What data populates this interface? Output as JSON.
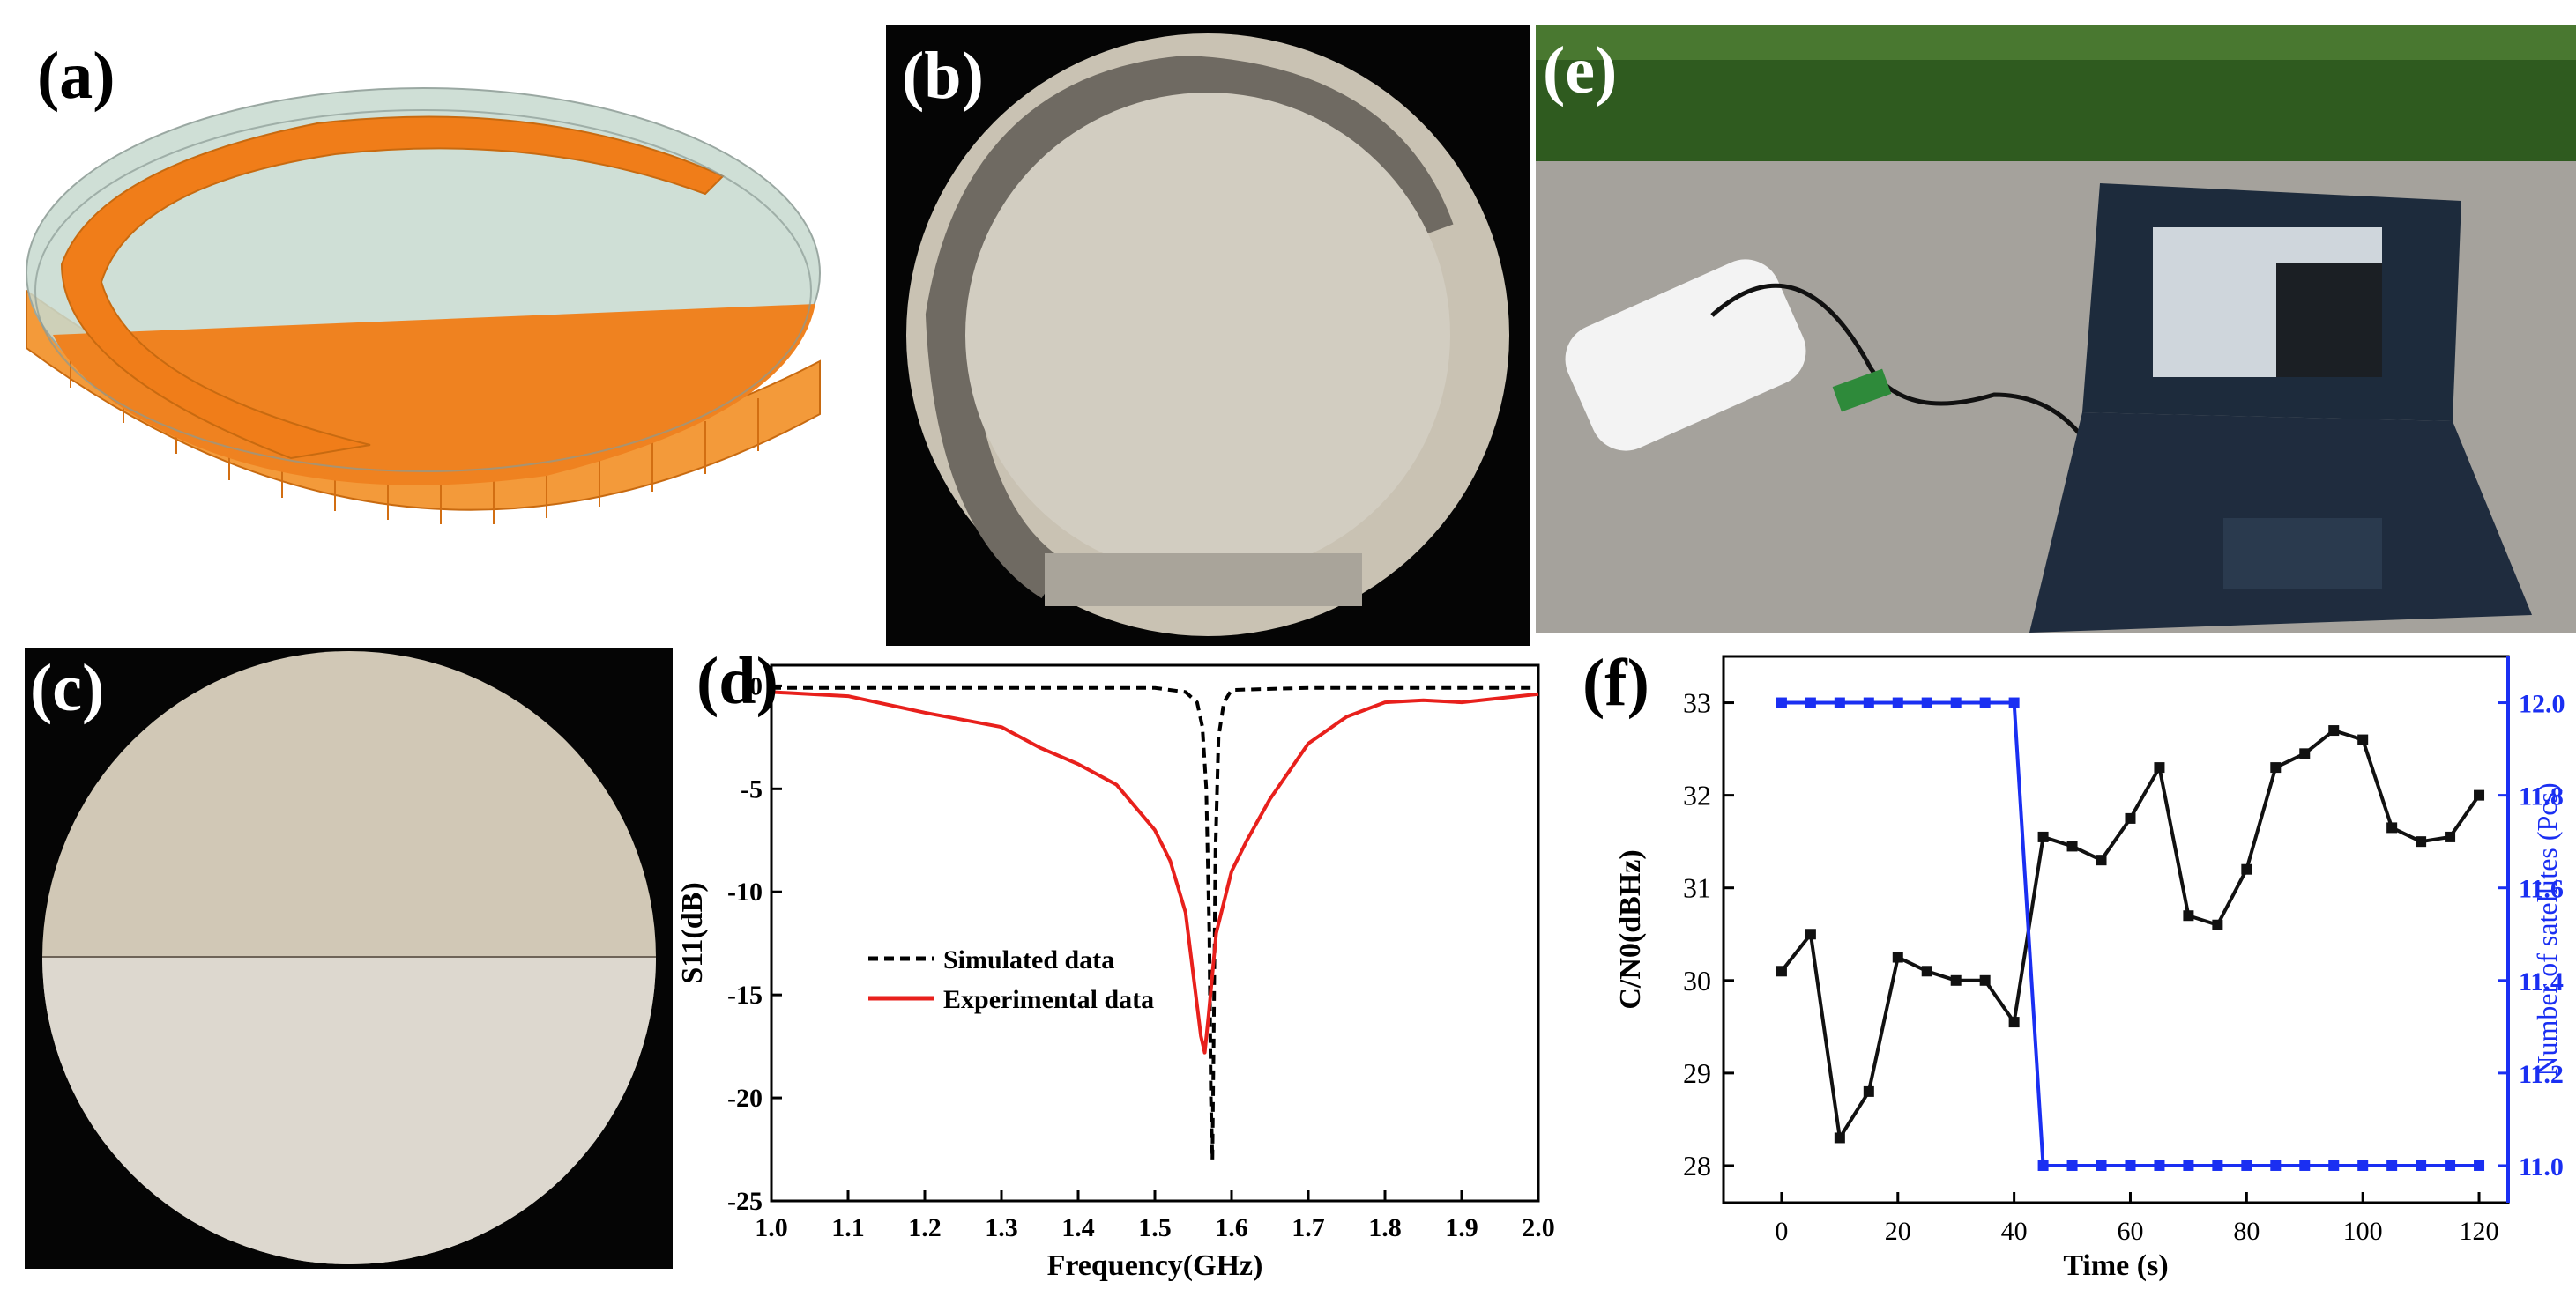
{
  "figure": {
    "panel_labels": {
      "a": "(a)",
      "b": "(b)",
      "c": "(c)",
      "d": "(d)",
      "e": "(e)",
      "f": "(f)"
    }
  },
  "colors": {
    "copper": "#f07d19",
    "substrate": "#c8d8d0",
    "simulated": "#000000",
    "experimental": "#e8201c",
    "cn0_series": "#111111",
    "satellites_series": "#1a2ff2",
    "right_axis": "#1a2ff2"
  },
  "chart_data": [
    {
      "panel": "d",
      "type": "line",
      "title": "",
      "xlabel": "Frequency(GHz)",
      "ylabel": "S11(dB)",
      "xlim": [
        1.0,
        2.0
      ],
      "ylim": [
        -25,
        1
      ],
      "xticks": [
        "1.0",
        "1.1",
        "1.2",
        "1.3",
        "1.4",
        "1.5",
        "1.6",
        "1.7",
        "1.8",
        "1.9",
        "2.0"
      ],
      "yticks": [
        "0",
        "-5",
        "-10",
        "-15",
        "-20",
        "-25"
      ],
      "legend_position": "center-left",
      "series": [
        {
          "name": "Simulated data",
          "style": "dashed",
          "color": "#000000",
          "x": [
            1.0,
            1.5,
            1.54,
            1.555,
            1.562,
            1.567,
            1.571,
            1.573,
            1.575,
            1.577,
            1.579,
            1.583,
            1.59,
            1.6,
            1.7,
            2.0
          ],
          "y": [
            -0.1,
            -0.1,
            -0.3,
            -0.8,
            -2.0,
            -5.0,
            -12.0,
            -20.0,
            -23.0,
            -16.0,
            -8.0,
            -2.5,
            -0.8,
            -0.2,
            -0.1,
            -0.1
          ]
        },
        {
          "name": "Experimental data",
          "style": "solid",
          "color": "#e8201c",
          "x": [
            1.0,
            1.1,
            1.2,
            1.3,
            1.35,
            1.4,
            1.45,
            1.5,
            1.52,
            1.54,
            1.55,
            1.56,
            1.565,
            1.57,
            1.58,
            1.6,
            1.62,
            1.65,
            1.7,
            1.75,
            1.8,
            1.85,
            1.9,
            1.95,
            2.0
          ],
          "y": [
            -0.3,
            -0.5,
            -1.3,
            -2.0,
            -3.0,
            -3.8,
            -4.8,
            -7.0,
            -8.5,
            -11.0,
            -14.0,
            -17.0,
            -17.8,
            -16.0,
            -12.0,
            -9.0,
            -7.5,
            -5.5,
            -2.8,
            -1.5,
            -0.8,
            -0.7,
            -0.8,
            -0.6,
            -0.4
          ]
        }
      ]
    },
    {
      "panel": "f",
      "type": "line",
      "title": "",
      "xlabel": "Time (s)",
      "ylabel": "C/N0(dBHz)",
      "ylabel_right": "Number of satellites (Pcs)",
      "xlim": [
        -10,
        125
      ],
      "ylim": [
        27.6,
        33.5
      ],
      "ylim_right": [
        10.92,
        12.1
      ],
      "xticks": [
        "0",
        "20",
        "40",
        "60",
        "80",
        "100",
        "120"
      ],
      "yticks": [
        "28",
        "29",
        "30",
        "31",
        "32",
        "33"
      ],
      "yticks_right": [
        "11.0",
        "11.2",
        "11.4",
        "11.6",
        "11.8",
        "12.0"
      ],
      "series": [
        {
          "name": "C/N0",
          "axis": "left",
          "color": "#111111",
          "x": [
            0,
            5,
            10,
            15,
            20,
            25,
            30,
            35,
            40,
            45,
            50,
            55,
            60,
            65,
            70,
            75,
            80,
            85,
            90,
            95,
            100,
            105,
            110,
            115,
            120
          ],
          "y": [
            30.1,
            30.5,
            28.3,
            28.8,
            30.25,
            30.1,
            30.0,
            30.0,
            29.55,
            31.55,
            31.45,
            31.3,
            31.75,
            32.3,
            30.7,
            30.6,
            31.2,
            32.3,
            32.45,
            32.7,
            32.6,
            31.65,
            31.5,
            31.55,
            32.0
          ]
        },
        {
          "name": "Number of satellites",
          "axis": "right",
          "color": "#1a2ff2",
          "x": [
            0,
            5,
            10,
            15,
            20,
            25,
            30,
            35,
            40,
            45,
            50,
            55,
            60,
            65,
            70,
            75,
            80,
            85,
            90,
            95,
            100,
            105,
            110,
            115,
            120
          ],
          "y": [
            12,
            12,
            12,
            12,
            12,
            12,
            12,
            12,
            12,
            11,
            11,
            11,
            11,
            11,
            11,
            11,
            11,
            11,
            11,
            11,
            11,
            11,
            11,
            11,
            11
          ]
        }
      ]
    }
  ]
}
